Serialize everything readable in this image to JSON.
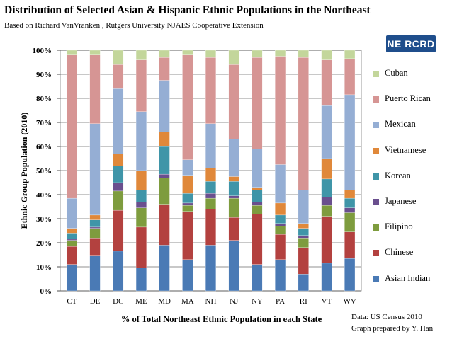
{
  "header": {
    "title": "Distribution of Selected Asian & Hispanic Ethnic Populations in the Northeast",
    "subtitle": "Based on Richard VanVranken , Rutgers University NJAES Cooperative Extension"
  },
  "logo": {
    "text": "NE RCRD",
    "color": "#1f4e8c"
  },
  "notes": {
    "line1": "Data: US Census 2010",
    "line2": "Graph prepared by Y. Han"
  },
  "chart_data": {
    "type": "bar",
    "stacked": true,
    "title": "Distribution of Selected Asian & Hispanic Ethnic Populations in the Northeast",
    "xlabel": "% of Total Northeast Ethnic Population in each State",
    "ylabel": "Ethnic Group Population (2010)",
    "ylim": [
      0,
      100
    ],
    "yticks": [
      "0%",
      "10%",
      "20%",
      "30%",
      "40%",
      "50%",
      "60%",
      "70%",
      "80%",
      "90%",
      "100%"
    ],
    "categories": [
      "CT",
      "DE",
      "DC",
      "ME",
      "MD",
      "MA",
      "NH",
      "NJ",
      "NY",
      "PA",
      "RI",
      "VT",
      "WV"
    ],
    "legend_position": "right",
    "series": [
      {
        "name": "Asian Indian",
        "color": "#4a7ab5",
        "values": [
          11,
          14.5,
          16.5,
          9.5,
          19,
          13,
          19,
          21,
          11,
          13,
          7,
          11.5,
          13.5
        ]
      },
      {
        "name": "Chinese",
        "color": "#b3413f",
        "values": [
          7.5,
          7.5,
          17,
          17,
          17,
          20,
          15,
          9.5,
          21,
          10.5,
          11,
          19.5,
          11
        ]
      },
      {
        "name": "Filipino",
        "color": "#7e9c3e",
        "values": [
          2.5,
          4,
          8,
          8,
          11,
          2.5,
          4.5,
          8,
          3.5,
          3.5,
          4,
          4.5,
          8
        ]
      },
      {
        "name": "Japanese",
        "color": "#6a4f8e",
        "values": [
          0.5,
          0.5,
          3.5,
          2.5,
          1.5,
          1,
          2,
          1,
          1.5,
          1,
          1,
          3.5,
          2
        ]
      },
      {
        "name": "Korean",
        "color": "#3f95a8",
        "values": [
          2.5,
          3,
          7,
          5,
          11.5,
          4,
          5,
          6,
          5,
          3.5,
          3,
          7.5,
          4
        ]
      },
      {
        "name": "Vietnamese",
        "color": "#e0883a",
        "values": [
          2,
          2,
          5,
          8,
          6,
          7.5,
          5.5,
          2,
          1,
          5,
          2,
          8.5,
          3.5
        ]
      },
      {
        "name": "Mexican",
        "color": "#95aed4",
        "values": [
          12.5,
          38,
          27,
          24.5,
          21.5,
          6.5,
          18.5,
          15.5,
          16,
          16,
          14,
          22,
          39.5
        ]
      },
      {
        "name": "Puerto Rican",
        "color": "#d69594",
        "values": [
          59.5,
          28.5,
          10,
          21.5,
          9.5,
          43.5,
          27.5,
          31,
          38,
          45,
          55,
          19,
          15
        ]
      },
      {
        "name": "Cuban",
        "color": "#c3d69b",
        "values": [
          2,
          2,
          6,
          4,
          3,
          2,
          3,
          6,
          3,
          2.5,
          3,
          4,
          3.5
        ]
      }
    ]
  }
}
